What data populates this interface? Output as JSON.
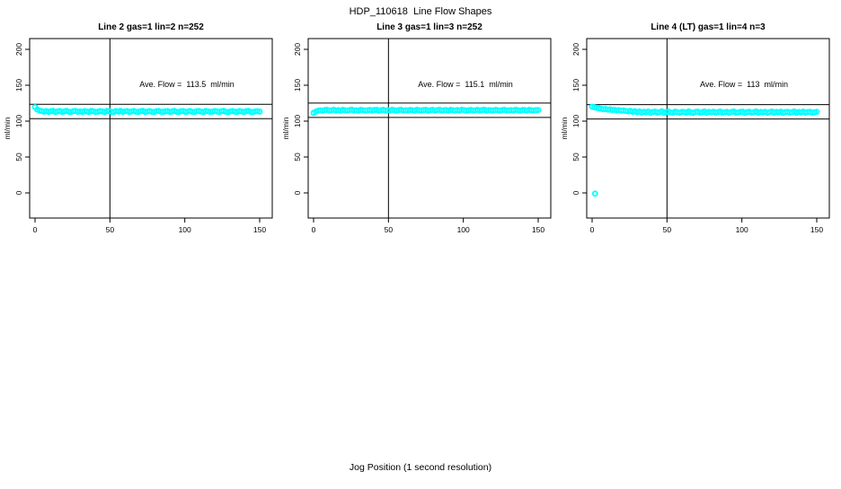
{
  "figure": {
    "title": "HDP_110618  Line Flow Shapes",
    "xlabel": "Jog Position (1 second resolution)"
  },
  "colors": {
    "marker": "#00FFFF",
    "axis": "#000000"
  },
  "chart_data": [
    {
      "type": "scatter",
      "title": "Line 2 gas=1 lin=2 n=252",
      "annotation": "Ave. Flow =  113.5  ml/min",
      "ave_flow": 113.5,
      "n": 252,
      "ylabel": "ml/min",
      "x_ticks": [
        0,
        50,
        100,
        150
      ],
      "y_ticks": [
        0,
        50,
        100,
        150,
        200
      ],
      "xlim": [
        -3,
        156
      ],
      "ylim": [
        -35,
        215
      ],
      "vline_x": 50,
      "hlines": [
        123.5,
        103.5
      ],
      "marker_color": "#00FFFF",
      "series": {
        "x0": 0,
        "dx": 1.5,
        "y": [
          119.5,
          116.2,
          114.6,
          113.9,
          113.2,
          114.1,
          112.9,
          113.8,
          114.3,
          112.8,
          113.5,
          114.2,
          112.9,
          113.6,
          114.4,
          113.1,
          112.7,
          113.9,
          114.2,
          113.0,
          113.6,
          112.8,
          114.1,
          113.4,
          112.9,
          114.3,
          113.7,
          112.8,
          113.2,
          114.0,
          113.5,
          112.7,
          114.2,
          113.8,
          113.0,
          112.8,
          114.1,
          113.3,
          114.4,
          112.9,
          113.6,
          114.0,
          112.8,
          113.5,
          114.2,
          113.1,
          112.9,
          113.8,
          114.3,
          112.7,
          113.4,
          114.1,
          113.0,
          112.8,
          113.9,
          114.2,
          113.2,
          112.9,
          113.7,
          114.0,
          112.8,
          113.5,
          114.3,
          113.1,
          112.7,
          113.8,
          114.1,
          112.9,
          113.4,
          114.2,
          113.0,
          112.8,
          113.9,
          114.0,
          113.3,
          112.7,
          114.2,
          113.6,
          112.9,
          113.2,
          114.1,
          113.5,
          112.8,
          113.9,
          114.3,
          113.0,
          112.7,
          113.6,
          114.0,
          113.2,
          112.9,
          114.1,
          113.4,
          112.8,
          113.8,
          114.2,
          113.0,
          112.7,
          113.5,
          113.9,
          113.2
        ]
      },
      "extra_points": []
    },
    {
      "type": "scatter",
      "title": "Line 3 gas=1 lin=3 n=252",
      "annotation": "Ave. Flow =  115.1  ml/min",
      "ave_flow": 115.1,
      "n": 252,
      "ylabel": "ml/min",
      "x_ticks": [
        0,
        50,
        100,
        150
      ],
      "y_ticks": [
        0,
        50,
        100,
        150,
        200
      ],
      "xlim": [
        -3,
        156
      ],
      "ylim": [
        -35,
        215
      ],
      "vline_x": 50,
      "hlines": [
        125.1,
        105.1
      ],
      "marker_color": "#00FFFF",
      "series": {
        "x0": 0,
        "dx": 1.5,
        "y": [
          111.5,
          113.2,
          114.5,
          115.0,
          114.6,
          115.4,
          115.8,
          114.7,
          115.2,
          115.9,
          114.8,
          115.3,
          114.6,
          115.7,
          115.1,
          114.7,
          115.5,
          115.9,
          114.8,
          115.2,
          114.6,
          115.8,
          115.3,
          114.7,
          115.1,
          115.6,
          114.8,
          115.4,
          115.9,
          114.6,
          115.2,
          115.7,
          114.8,
          115.3,
          114.7,
          115.9,
          115.1,
          114.6,
          115.5,
          115.8,
          114.7,
          115.2,
          114.8,
          115.6,
          115.3,
          114.6,
          115.9,
          115.1,
          114.8,
          115.4,
          115.7,
          114.6,
          115.2,
          115.8,
          114.7,
          115.3,
          115.9,
          114.8,
          115.1,
          115.5,
          114.6,
          115.7,
          115.2,
          114.8,
          115.4,
          114.7,
          115.9,
          115.3,
          114.6,
          115.1,
          115.6,
          114.8,
          115.2,
          115.8,
          114.7,
          115.4,
          115.9,
          114.6,
          115.3,
          115.1,
          114.8,
          115.7,
          115.2,
          114.6,
          115.5,
          115.8,
          114.7,
          115.1,
          115.3,
          114.8,
          115.9,
          115.2,
          114.6,
          115.6,
          115.4,
          114.7,
          115.8,
          115.1,
          114.8,
          115.3,
          115.5
        ]
      },
      "extra_points": []
    },
    {
      "type": "scatter",
      "title": "Line 4 (LT) gas=1 lin=4 n=3",
      "annotation": "Ave. Flow =  113  ml/min",
      "ave_flow": 113,
      "n": 3,
      "ylabel": "ml/min",
      "x_ticks": [
        0,
        50,
        100,
        150
      ],
      "y_ticks": [
        0,
        50,
        100,
        150,
        200
      ],
      "xlim": [
        -3,
        156
      ],
      "ylim": [
        -35,
        215
      ],
      "vline_x": 50,
      "hlines": [
        123,
        103
      ],
      "marker_color": "#00FFFF",
      "series": {
        "x0": 0,
        "dx": 1.5,
        "y": [
          120.2,
          119.3,
          118.6,
          117.9,
          117.2,
          116.6,
          116.8,
          115.9,
          116.3,
          115.4,
          115.8,
          114.9,
          115.3,
          114.5,
          114.9,
          114.1,
          113.6,
          114.4,
          112.9,
          113.8,
          112.4,
          113.5,
          111.9,
          113.1,
          112.2,
          113.6,
          111.6,
          112.8,
          113.3,
          111.8,
          112.5,
          113.7,
          111.5,
          112.9,
          113.4,
          112.0,
          111.7,
          113.2,
          112.4,
          111.6,
          113.0,
          112.7,
          111.9,
          113.5,
          112.1,
          111.5,
          112.8,
          113.3,
          111.8,
          112.4,
          113.6,
          111.6,
          112.9,
          112.2,
          113.1,
          111.7,
          112.6,
          113.4,
          111.9,
          112.3,
          113.0,
          111.6,
          112.8,
          113.5,
          111.8,
          112.2,
          112.9,
          113.3,
          111.5,
          112.6,
          113.1,
          111.9,
          112.4,
          113.6,
          111.7,
          112.8,
          112.2,
          113.0,
          111.6,
          112.5,
          113.4,
          111.8,
          112.9,
          112.3,
          113.2,
          111.5,
          112.7,
          113.0,
          111.9,
          112.4,
          113.5,
          111.6,
          112.8,
          112.1,
          113.3,
          111.7,
          112.6,
          113.0,
          111.8,
          112.3,
          112.9
        ]
      },
      "extra_points": [
        [
          2,
          -1
        ]
      ]
    }
  ]
}
